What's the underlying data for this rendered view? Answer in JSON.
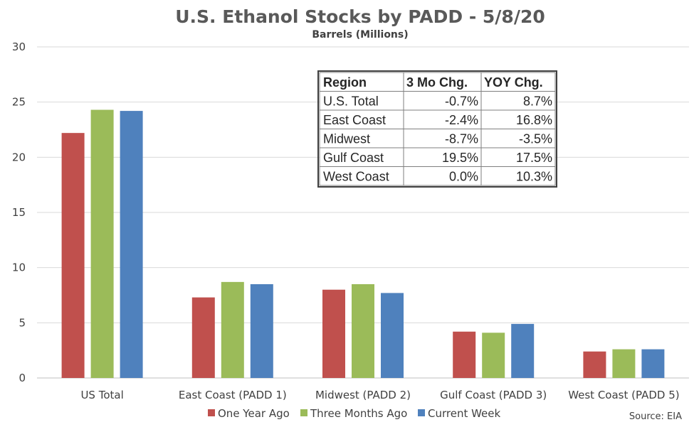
{
  "title": "U.S. Ethanol Stocks by PADD - 5/8/20",
  "subtitle": "Barrels (Millions)",
  "source": "Source: EIA",
  "colors": {
    "one_year_ago": "#c0504d",
    "three_months_ago": "#9bbb59",
    "current_week": "#4f81bd",
    "grid": "#d9d9d9",
    "axis": "#bfbfbf"
  },
  "chart_data": {
    "type": "bar",
    "title": "U.S. Ethanol Stocks by PADD - 5/8/20",
    "subtitle": "Barrels (Millions)",
    "xlabel": "",
    "ylabel": "",
    "ylim": [
      0,
      30
    ],
    "yticks": [
      0,
      5,
      10,
      15,
      20,
      25,
      30
    ],
    "grid": true,
    "legend_position": "bottom",
    "categories": [
      "US Total",
      "East Coast (PADD 1)",
      "Midwest (PADD 2)",
      "Gulf Coast (PADD 3)",
      "West Coast (PADD 5)"
    ],
    "series": [
      {
        "name": "One Year Ago",
        "color": "#c0504d",
        "values": [
          22.2,
          7.3,
          8.0,
          4.2,
          2.4
        ]
      },
      {
        "name": "Three Months Ago",
        "color": "#9bbb59",
        "values": [
          24.3,
          8.7,
          8.5,
          4.1,
          2.6
        ]
      },
      {
        "name": "Current Week",
        "color": "#4f81bd",
        "values": [
          24.2,
          8.5,
          7.7,
          4.9,
          2.6
        ]
      }
    ]
  },
  "table": {
    "headers": [
      "Region",
      "3 Mo Chg.",
      "YOY Chg."
    ],
    "rows": [
      [
        "U.S. Total",
        "-0.7%",
        "8.7%"
      ],
      [
        "East Coast",
        "-2.4%",
        "16.8%"
      ],
      [
        "Midwest",
        "-8.7%",
        "-3.5%"
      ],
      [
        "Gulf Coast",
        "19.5%",
        "17.5%"
      ],
      [
        "West Coast",
        "0.0%",
        "10.3%"
      ]
    ]
  }
}
